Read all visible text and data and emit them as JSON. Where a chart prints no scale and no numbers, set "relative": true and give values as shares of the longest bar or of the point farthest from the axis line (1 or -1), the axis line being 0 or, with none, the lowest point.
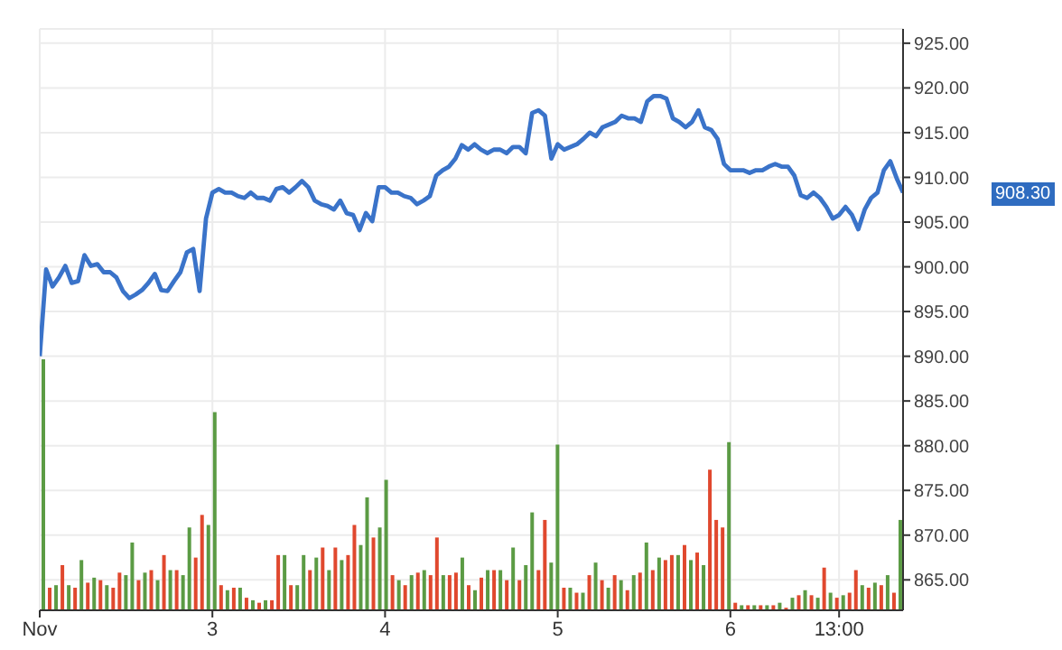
{
  "chart_data": [
    {
      "type": "line",
      "categories": [
        "Nov",
        null,
        null,
        null,
        null,
        null,
        null,
        null,
        null,
        null,
        null,
        null,
        null,
        null,
        null,
        null,
        null,
        null,
        null,
        null,
        null,
        null,
        null,
        null,
        null,
        null,
        null,
        "3",
        null,
        null,
        null,
        null,
        null,
        null,
        null,
        null,
        null,
        null,
        null,
        null,
        null,
        null,
        null,
        null,
        null,
        null,
        null,
        null,
        null,
        null,
        null,
        null,
        null,
        null,
        "4",
        null,
        null,
        null,
        null,
        null,
        null,
        null,
        null,
        null,
        null,
        null,
        null,
        null,
        null,
        null,
        null,
        null,
        null,
        null,
        null,
        null,
        null,
        null,
        null,
        null,
        null,
        "5",
        null,
        null,
        null,
        null,
        null,
        null,
        null,
        null,
        null,
        null,
        null,
        null,
        null,
        null,
        null,
        null,
        null,
        null,
        null,
        null,
        null,
        null,
        null,
        null,
        null,
        null,
        "6",
        null,
        null,
        null,
        null,
        null,
        null,
        null,
        null,
        null,
        null,
        null,
        null,
        null,
        null,
        null,
        null,
        "13:00",
        null,
        null,
        null,
        null,
        null,
        null,
        null,
        null,
        null,
        null
      ],
      "series": [
        {
          "color": "#3a73c9",
          "values": [
            890,
            899.7,
            897.8,
            898.8,
            900.1,
            898.2,
            898.4,
            901.3,
            900.1,
            900.3,
            899.4,
            899.4,
            898.8,
            897.3,
            896.5,
            896.9,
            897.4,
            898.2,
            899.2,
            897.4,
            897.3,
            898.4,
            899.4,
            901.6,
            902,
            897.3,
            905.4,
            908.3,
            908.7,
            908.3,
            908.3,
            907.9,
            907.7,
            908.3,
            907.7,
            907.7,
            907.4,
            908.7,
            908.9,
            908.3,
            908.9,
            909.6,
            908.9,
            907.4,
            907,
            906.8,
            906.4,
            907.4,
            906,
            905.8,
            904.1,
            906,
            905.1,
            908.9,
            908.9,
            908.3,
            908.3,
            907.9,
            907.7,
            907,
            907.4,
            907.9,
            910.2,
            910.8,
            911.2,
            912.1,
            913.6,
            913.1,
            913.7,
            913.1,
            912.7,
            913.1,
            913.1,
            912.7,
            913.4,
            913.4,
            912.7,
            917.2,
            917.5,
            916.9,
            912.1,
            913.7,
            913.1,
            913.4,
            913.7,
            914.3,
            915,
            914.6,
            915.6,
            915.9,
            916.2,
            916.9,
            916.6,
            916.6,
            916.2,
            918.5,
            919.1,
            919.1,
            918.8,
            916.6,
            916.2,
            915.6,
            916.2,
            917.5,
            915.6,
            915.3,
            914.3,
            911.5,
            910.8,
            910.8,
            910.8,
            910.5,
            910.8,
            910.8,
            911.2,
            911.5,
            911.2,
            911.2,
            910.2,
            908,
            907.7,
            908.3,
            907.7,
            906.7,
            905.4,
            905.8,
            906.7,
            905.8,
            904.2,
            906.4,
            907.7,
            908.3,
            910.8,
            911.8,
            909.9,
            908.3
          ]
        }
      ],
      "ylim": [
        861.6,
        926.6
      ],
      "yticks": [
        {
          "value": 865,
          "label": "865.00"
        },
        {
          "value": 870,
          "label": "870.00"
        },
        {
          "value": 875,
          "label": "875.00"
        },
        {
          "value": 880,
          "label": "880.00"
        },
        {
          "value": 885,
          "label": "885.00"
        },
        {
          "value": 890,
          "label": "890.00"
        },
        {
          "value": 895,
          "label": "895.00"
        },
        {
          "value": 900,
          "label": "900.00"
        },
        {
          "value": 905,
          "label": "905.00"
        },
        {
          "value": 910,
          "label": "910.00"
        },
        {
          "value": 915,
          "label": "915.00"
        },
        {
          "value": 920,
          "label": "920.00"
        },
        {
          "value": 925,
          "label": "925.00"
        }
      ],
      "annotations": [
        "908.30"
      ],
      "grid": true,
      "marker": "none",
      "line_style": "solid"
    },
    {
      "type": "bar",
      "relative": true,
      "categories": [
        null,
        null,
        null,
        null,
        null,
        null,
        null,
        null,
        null,
        null,
        null,
        null,
        null,
        null,
        null,
        null,
        null,
        null,
        null,
        null,
        null,
        null,
        null,
        null,
        null,
        null,
        null,
        null,
        null,
        null,
        null,
        null,
        null,
        null,
        null,
        null,
        null,
        null,
        null,
        null,
        null,
        null,
        null,
        null,
        null,
        null,
        null,
        null,
        null,
        null,
        null,
        null,
        null,
        null,
        null,
        null,
        null,
        null,
        null,
        null,
        null,
        null,
        null,
        null,
        null,
        null,
        null,
        null,
        null,
        null,
        null,
        null,
        null,
        null,
        null,
        null,
        null,
        null,
        null,
        null,
        null,
        null,
        null,
        null,
        null,
        null,
        null,
        null,
        null,
        null,
        null,
        null,
        null,
        null,
        null,
        null,
        null,
        null,
        null,
        null,
        null,
        null,
        null,
        null,
        null,
        null,
        null,
        null,
        null,
        null,
        null,
        null,
        null,
        null,
        null,
        null,
        null,
        null,
        null,
        null,
        null,
        null,
        null,
        null,
        null,
        null,
        null,
        null,
        null,
        null,
        null,
        null,
        null,
        null,
        null,
        null
      ],
      "values": [
        1,
        0.09,
        0.1,
        0.18,
        0.1,
        0.09,
        0.2,
        0.11,
        0.13,
        0.12,
        0.1,
        0.09,
        0.15,
        0.14,
        0.27,
        0.12,
        0.15,
        0.16,
        0.12,
        0.22,
        0.16,
        0.16,
        0.14,
        0.33,
        0.21,
        0.38,
        0.34,
        0.79,
        0.1,
        0.08,
        0.09,
        0.09,
        0.05,
        0.04,
        0.03,
        0.04,
        0.04,
        0.22,
        0.22,
        0.1,
        0.1,
        0.22,
        0.16,
        0.21,
        0.25,
        0.16,
        0.25,
        0.2,
        0.22,
        0.34,
        0.26,
        0.45,
        0.29,
        0.33,
        0.52,
        0.14,
        0.12,
        0.1,
        0.14,
        0.15,
        0.16,
        0.14,
        0.29,
        0.14,
        0.14,
        0.15,
        0.21,
        0.1,
        0.08,
        0.13,
        0.16,
        0.16,
        0.16,
        0.12,
        0.25,
        0.12,
        0.18,
        0.39,
        0.16,
        0.36,
        0.19,
        0.66,
        0.09,
        0.09,
        0.07,
        0.07,
        0.14,
        0.19,
        0.12,
        0.09,
        0.14,
        0.12,
        0.08,
        0.14,
        0.15,
        0.27,
        0.16,
        0.21,
        0.2,
        0.22,
        0.22,
        0.26,
        0.2,
        0.23,
        0.18,
        0.56,
        0.36,
        0.33,
        0.67,
        0.03,
        0.02,
        0.02,
        0.02,
        0.02,
        0.02,
        0.02,
        0.03,
        0.01,
        0.05,
        0.06,
        0.08,
        0.06,
        0.05,
        0.17,
        0.07,
        0.05,
        0.06,
        0.07,
        0.16,
        0.1,
        0.09,
        0.11,
        0.1,
        0.14,
        0.07,
        0.36
      ],
      "colors": [
        "#5b9b44",
        "#e0482e",
        "#5b9b44",
        "#e0482e",
        "#5b9b44",
        "#e0482e",
        "#5b9b44",
        "#e0482e",
        "#5b9b44",
        "#e0482e",
        "#5b9b44",
        "#e0482e",
        "#e0482e",
        "#5b9b44",
        "#5b9b44",
        "#e0482e",
        "#5b9b44",
        "#e0482e",
        "#5b9b44",
        "#e0482e",
        "#5b9b44",
        "#e0482e",
        "#5b9b44",
        "#5b9b44",
        "#e0482e",
        "#e0482e",
        "#5b9b44",
        "#5b9b44",
        "#e0482e",
        "#5b9b44",
        "#e0482e",
        "#5b9b44",
        "#e0482e",
        "#5b9b44",
        "#e0482e",
        "#5b9b44",
        "#e0482e",
        "#e0482e",
        "#5b9b44",
        "#e0482e",
        "#5b9b44",
        "#5b9b44",
        "#e0482e",
        "#5b9b44",
        "#e0482e",
        "#5b9b44",
        "#e0482e",
        "#5b9b44",
        "#e0482e",
        "#e0482e",
        "#5b9b44",
        "#5b9b44",
        "#e0482e",
        "#5b9b44",
        "#5b9b44",
        "#e0482e",
        "#5b9b44",
        "#e0482e",
        "#5b9b44",
        "#e0482e",
        "#5b9b44",
        "#e0482e",
        "#e0482e",
        "#5b9b44",
        "#e0482e",
        "#e0482e",
        "#5b9b44",
        "#e0482e",
        "#5b9b44",
        "#e0482e",
        "#5b9b44",
        "#e0482e",
        "#5b9b44",
        "#e0482e",
        "#5b9b44",
        "#e0482e",
        "#5b9b44",
        "#5b9b44",
        "#e0482e",
        "#e0482e",
        "#5b9b44",
        "#5b9b44",
        "#e0482e",
        "#5b9b44",
        "#e0482e",
        "#5b9b44",
        "#e0482e",
        "#5b9b44",
        "#e0482e",
        "#5b9b44",
        "#e0482e",
        "#5b9b44",
        "#e0482e",
        "#5b9b44",
        "#e0482e",
        "#5b9b44",
        "#e0482e",
        "#5b9b44",
        "#e0482e",
        "#e0482e",
        "#5b9b44",
        "#e0482e",
        "#5b9b44",
        "#e0482e",
        "#5b9b44",
        "#e0482e",
        "#e0482e",
        "#e0482e",
        "#5b9b44",
        "#e0482e",
        "#5b9b44",
        "#e0482e",
        "#5b9b44",
        "#e0482e",
        "#5b9b44",
        "#e0482e",
        "#5b9b44",
        "#e0482e",
        "#5b9b44",
        "#e0482e",
        "#5b9b44",
        "#e0482e",
        "#5b9b44",
        "#e0482e",
        "#5b9b44",
        "#e0482e",
        "#5b9b44",
        "#e0482e",
        "#e0482e",
        "#5b9b44",
        "#e0482e",
        "#5b9b44",
        "#e0482e",
        "#5b9b44",
        "#e0482e",
        "#5b9b44"
      ]
    }
  ]
}
